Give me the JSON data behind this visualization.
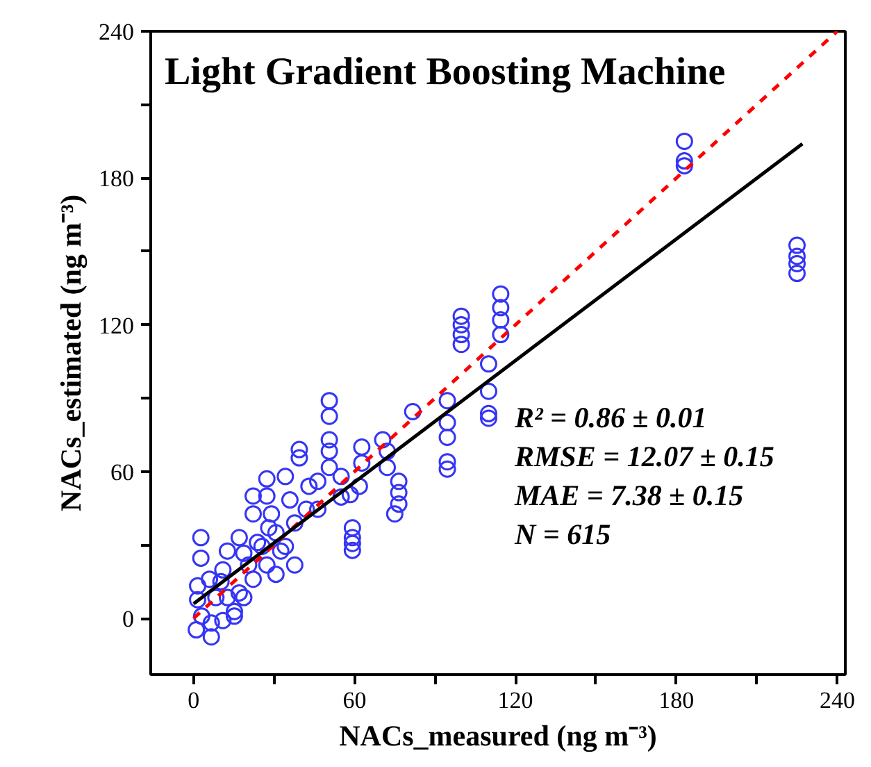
{
  "chart_data": {
    "type": "scatter",
    "title": "Light Gradient Boosting Machine",
    "xlabel": "NACs_measured (ng m⁻³)",
    "ylabel": "NACs_estimated (ng m⁻³)",
    "xlim": [
      -16,
      243
    ],
    "ylim": [
      -23,
      240
    ],
    "xticks": [
      0,
      {
        "value": 30,
        "label": null
      },
      60,
      {
        "value": 90,
        "label": null
      },
      120,
      {
        "value": 150,
        "label": null
      },
      180,
      {
        "value": 210,
        "label": null
      },
      240
    ],
    "yticks": [
      0,
      {
        "value": 30,
        "label": null
      },
      60,
      {
        "value": 90,
        "label": null
      },
      120,
      {
        "value": 150,
        "label": null
      },
      180,
      {
        "value": 210,
        "label": null
      },
      240
    ],
    "grid": false,
    "annotations": [
      "R² = 0.86 ± 0.01",
      "RMSE = 12.07 ± 0.15",
      "MAE = 7.38 ± 0.15",
      "N = 615"
    ],
    "series": [
      {
        "marker": "circle",
        "color": "#3535f5",
        "x": [
          2.7,
          2.7,
          1.5,
          1.5,
          1,
          6.6,
          6.6,
          10.9,
          5.9,
          10.2,
          15.2,
          18.7,
          22.2,
          12.6,
          17,
          22.2,
          22.2,
          27.3,
          27.3,
          28,
          34.2,
          35.9,
          39.4,
          39.4,
          42,
          37.7,
          34.2,
          30.7,
          25.5,
          20.5,
          12.6,
          17,
          8.3,
          23.8,
          29,
          43,
          46.3,
          50.6,
          50.6,
          50.6,
          50.6,
          50.6,
          46.3,
          55,
          55,
          59.2,
          59.2,
          59.2,
          59.2,
          62.7,
          62.7,
          58.4,
          70.5,
          72.2,
          72.2,
          76.5,
          76.5,
          76.5,
          75,
          81.7,
          61.8,
          37.7,
          32.5,
          18.7,
          3,
          15.2,
          10.9,
          27.3,
          30.7,
          94.6,
          94.6,
          94.6,
          94.6,
          94.6,
          99.8,
          99.8,
          99.8,
          99.8,
          110,
          110,
          110,
          110,
          114.5,
          114.5,
          114.5,
          114.5,
          183,
          183,
          183,
          225,
          225,
          225,
          225
        ],
        "values": [
          33,
          24.6,
          13.3,
          7.6,
          -4.7,
          -7.6,
          -1.9,
          -0.9,
          16,
          15,
          2.8,
          8.5,
          16,
          27.5,
          33,
          50,
          42.7,
          57,
          50,
          37,
          58,
          48.4,
          69,
          65.6,
          44.6,
          21.8,
          29.4,
          35,
          29.4,
          21.8,
          8.5,
          10.4,
          8.5,
          31,
          42.7,
          54,
          56,
          89,
          82.6,
          73,
          68.3,
          61.7,
          44.6,
          58,
          49.6,
          37,
          33,
          30.6,
          27.8,
          70,
          63.5,
          50.6,
          73,
          68.3,
          61.7,
          56,
          51.4,
          46.7,
          42.7,
          84.5,
          54,
          39,
          27.5,
          26.6,
          0.9,
          0.9,
          19.8,
          21.8,
          18,
          89,
          80,
          74,
          64,
          61,
          123.5,
          120,
          116,
          112,
          104,
          92.8,
          83.7,
          81.8,
          132.6,
          127,
          122,
          116,
          195,
          187,
          185,
          152.5,
          148,
          145,
          141
        ]
      },
      {
        "type": "line",
        "color": "#ff0000",
        "line_style": "dashed",
        "x": [
          0,
          240
        ],
        "values": [
          0,
          240
        ]
      },
      {
        "type": "line",
        "color": "#000000",
        "line_style": "solid",
        "x": [
          0,
          227
        ],
        "values": [
          6,
          194
        ]
      }
    ]
  }
}
